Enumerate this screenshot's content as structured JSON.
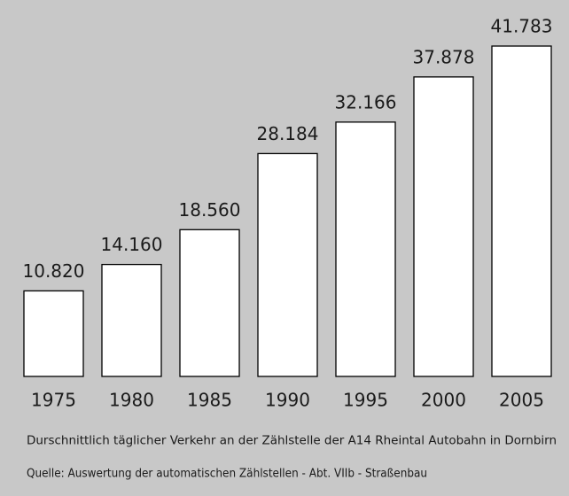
{
  "chart_data": {
    "type": "bar",
    "categories": [
      "1975",
      "1980",
      "1985",
      "1990",
      "1995",
      "2000",
      "2005"
    ],
    "values": [
      10820,
      14160,
      18560,
      28184,
      32166,
      37878,
      41783
    ],
    "value_labels": [
      "10.820",
      "14.160",
      "18.560",
      "28.184",
      "32.166",
      "37.878",
      "41.783"
    ],
    "color": "#ffffff",
    "caption": "Durschnittlich täglicher Verkehr an der Zählstelle der A14 Rheintal Autobahn in Dornbirn",
    "source": "Quelle: Auswertung der automatischen Zählstellen - Abt. VIIb - Straßenbau"
  }
}
